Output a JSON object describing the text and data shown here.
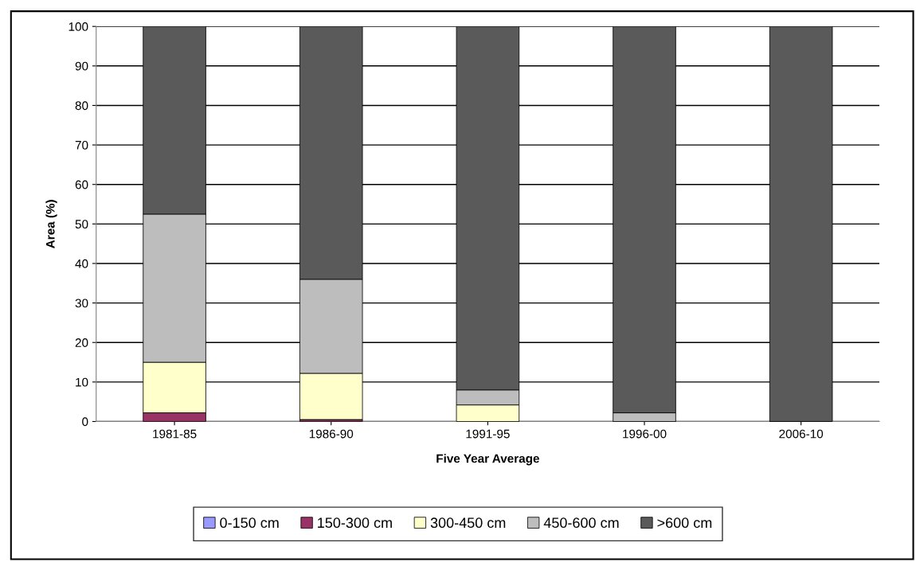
{
  "chart_data": {
    "type": "bar",
    "stacked": true,
    "xlabel": "Five Year Average",
    "ylabel": "Area (%)",
    "categories": [
      "1981-85",
      "1986-90",
      "1991-95",
      "1996-00",
      "2006-10"
    ],
    "series": [
      {
        "name": "0-150 cm",
        "color": "#9999ff",
        "values": [
          0,
          0,
          0,
          0,
          0
        ]
      },
      {
        "name": "150-300 cm",
        "color": "#993366",
        "values": [
          2.2,
          0.5,
          0,
          0,
          0
        ]
      },
      {
        "name": "300-450 cm",
        "color": "#ffffcc",
        "values": [
          12.8,
          11.7,
          4.2,
          0,
          0
        ]
      },
      {
        "name": "450-600 cm",
        "color": "#bdbdbd",
        "values": [
          37.5,
          23.8,
          3.8,
          2.2,
          0
        ]
      },
      {
        "name": ">600 cm",
        "color": "#5a5a5a",
        "values": [
          47.5,
          64,
          92,
          97.8,
          100
        ]
      }
    ],
    "ylim": [
      0,
      100
    ],
    "yticks": [
      0,
      10,
      20,
      30,
      40,
      50,
      60,
      70,
      80,
      90,
      100
    ],
    "grid": "y",
    "legend": "bottom"
  }
}
